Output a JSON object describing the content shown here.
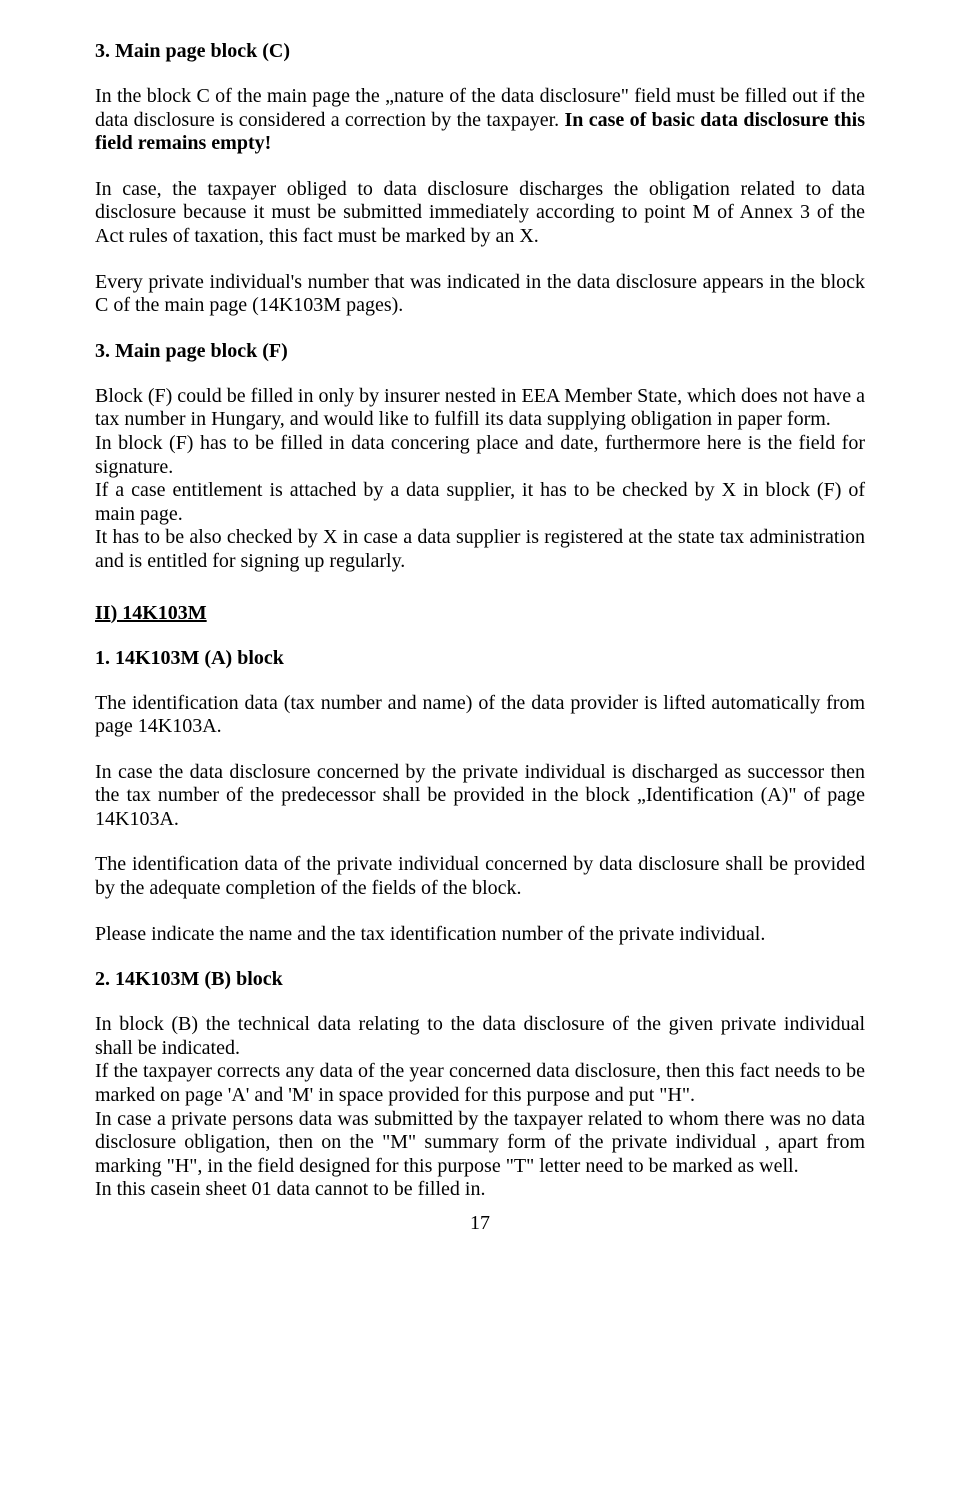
{
  "section_c": {
    "heading": "3. Main page block (C)",
    "p1_a": "In the block C of the main page the „nature of the data disclosure\" field must be filled out if the data disclosure is considered a correction by the taxpayer. ",
    "p1_b": "In case of basic data disclosure this field remains empty!",
    "p2": "In case, the taxpayer obliged to data disclosure discharges the obligation related to data disclosure because it must be submitted immediately according to point M of Annex 3 of the Act rules of taxation, this fact must be marked by an X.",
    "p3": "Every private individual's number that was indicated in the data disclosure appears in the block C of the main page (14K103M pages)."
  },
  "section_f": {
    "heading": "3. Main page block (F)",
    "p1": "Block (F) could be filled in only by insurer nested in EEA Member State, which does not have a tax number in Hungary, and would like to fulfill its data supplying obligation in paper form.",
    "p2": "In block (F) has to be filled in data concering place and date, furthermore here is the field for signature.",
    "p3": "If a case entitlement is attached by a data supplier, it has to be checked by X in block (F) of main page.",
    "p4": "It has to be also checked by X in case a data supplier is registered at the state tax administration and is entitled for signing up regularly."
  },
  "section_ii": {
    "heading": "II) 14K103M"
  },
  "block_a": {
    "heading": "1. 14K103M (A) block",
    "p1": "The identification data (tax number and name) of the data provider is lifted automatically from page 14K103A.",
    "p2": "In case the data disclosure concerned by the private individual is discharged as successor then the tax number of the predecessor shall be provided in the block „Identification (A)\" of page 14K103A.",
    "p3": "The identification data of the private individual concerned by data disclosure shall be provided by the adequate completion of the fields of the block.",
    "p4": "Please indicate the name and the tax identification number of the private individual."
  },
  "block_b": {
    "heading": "2. 14K103M (B) block",
    "p1": "In block (B) the technical data relating to the data disclosure of the given private individual shall be indicated.",
    "p2": "If the taxpayer corrects any data of the year concerned data disclosure, then this fact needs to be marked on page 'A' and 'M' in space provided for this purpose and put \"H\".",
    "p3": "In case a private persons data was submitted by the taxpayer related to whom there was no data disclosure obligation, then on the \"M\" summary form  of the private individual , apart from marking \"H\", in the field designed for this purpose \"T\" letter need to be marked as well.",
    "p4": "In this casein sheet 01 data cannot to be filled in."
  },
  "page_number": "17"
}
